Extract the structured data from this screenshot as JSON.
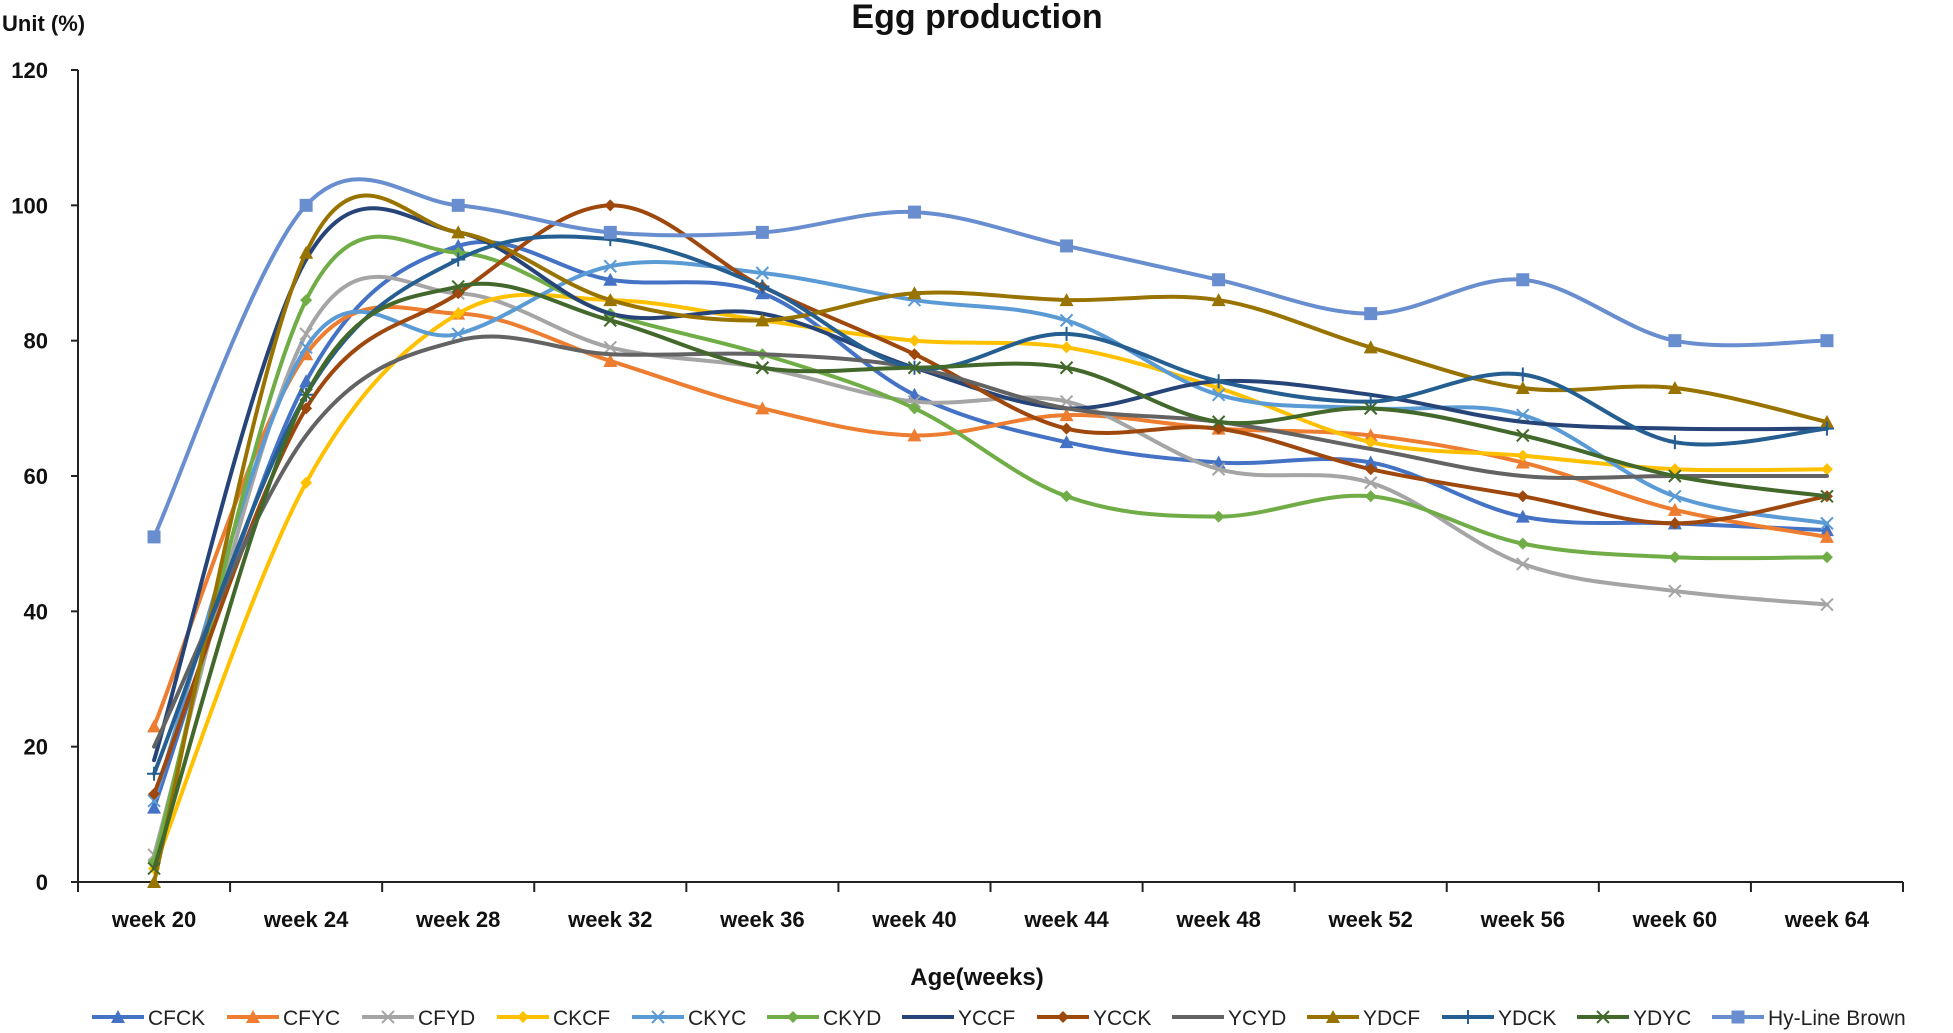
{
  "chart_data": {
    "type": "line",
    "title": "Egg production",
    "ylabel": "Unit (%)",
    "xlabel": "Age(weeks)",
    "ylim": [
      0,
      120
    ],
    "yticks": [
      0,
      20,
      40,
      60,
      80,
      100,
      120
    ],
    "grid": false,
    "smooth": true,
    "legend_position": "bottom",
    "categories": [
      "week 20",
      "week 24",
      "week 28",
      "week 32",
      "week 36",
      "week 40",
      "week 44",
      "week 48",
      "week 52",
      "week 56",
      "week 60",
      "week 64"
    ],
    "series": [
      {
        "name": "CFCK",
        "color": "#4472C4",
        "marker": "triangle",
        "values": [
          11,
          74,
          94,
          89,
          87,
          72,
          65,
          62,
          62,
          54,
          53,
          52
        ]
      },
      {
        "name": "CFYC",
        "color": "#ED7D31",
        "marker": "triangle",
        "values": [
          23,
          78,
          84,
          77,
          70,
          66,
          69,
          67,
          66,
          62,
          55,
          51
        ]
      },
      {
        "name": "CFYD",
        "color": "#A5A5A5",
        "marker": "x",
        "values": [
          4,
          81,
          87,
          79,
          76,
          71,
          71,
          61,
          59,
          47,
          43,
          41
        ]
      },
      {
        "name": "CKCF",
        "color": "#FFC000",
        "marker": "diamond",
        "values": [
          2,
          59,
          84,
          86,
          83,
          80,
          79,
          73,
          65,
          63,
          61,
          61
        ]
      },
      {
        "name": "CKYC",
        "color": "#5B9BD5",
        "marker": "x",
        "values": [
          12,
          79,
          81,
          91,
          90,
          86,
          83,
          72,
          70,
          69,
          57,
          53
        ]
      },
      {
        "name": "CKYD",
        "color": "#70AD47",
        "marker": "diamond",
        "values": [
          3,
          86,
          93,
          84,
          78,
          70,
          57,
          54,
          57,
          50,
          48,
          48
        ]
      },
      {
        "name": "YCCF",
        "color": "#264478",
        "marker": "none",
        "values": [
          18,
          92,
          96,
          84,
          84,
          76,
          70,
          74,
          72,
          68,
          67,
          67
        ]
      },
      {
        "name": "YCCK",
        "color": "#9E480E",
        "marker": "diamond",
        "values": [
          13,
          70,
          87,
          100,
          88,
          78,
          67,
          67,
          61,
          57,
          53,
          57
        ]
      },
      {
        "name": "YCYD",
        "color": "#636363",
        "marker": "none",
        "values": [
          20,
          66,
          80,
          78,
          78,
          76,
          70,
          68,
          64,
          60,
          60,
          60
        ]
      },
      {
        "name": "YDCF",
        "color": "#997300",
        "marker": "triangle",
        "values": [
          0,
          93,
          96,
          86,
          83,
          87,
          86,
          86,
          79,
          73,
          73,
          68
        ]
      },
      {
        "name": "YDCK",
        "color": "#255E91",
        "marker": "plus",
        "values": [
          16,
          72,
          92,
          95,
          88,
          76,
          81,
          74,
          71,
          75,
          65,
          67
        ]
      },
      {
        "name": "YDYC",
        "color": "#43682B",
        "marker": "x",
        "values": [
          2,
          72,
          88,
          83,
          76,
          76,
          76,
          68,
          70,
          66,
          60,
          57
        ]
      },
      {
        "name": "Hy-Line Brown",
        "color": "#698ED0",
        "marker": "square",
        "values": [
          51,
          100,
          100,
          96,
          96,
          99,
          94,
          89,
          84,
          89,
          80,
          80
        ]
      }
    ]
  }
}
